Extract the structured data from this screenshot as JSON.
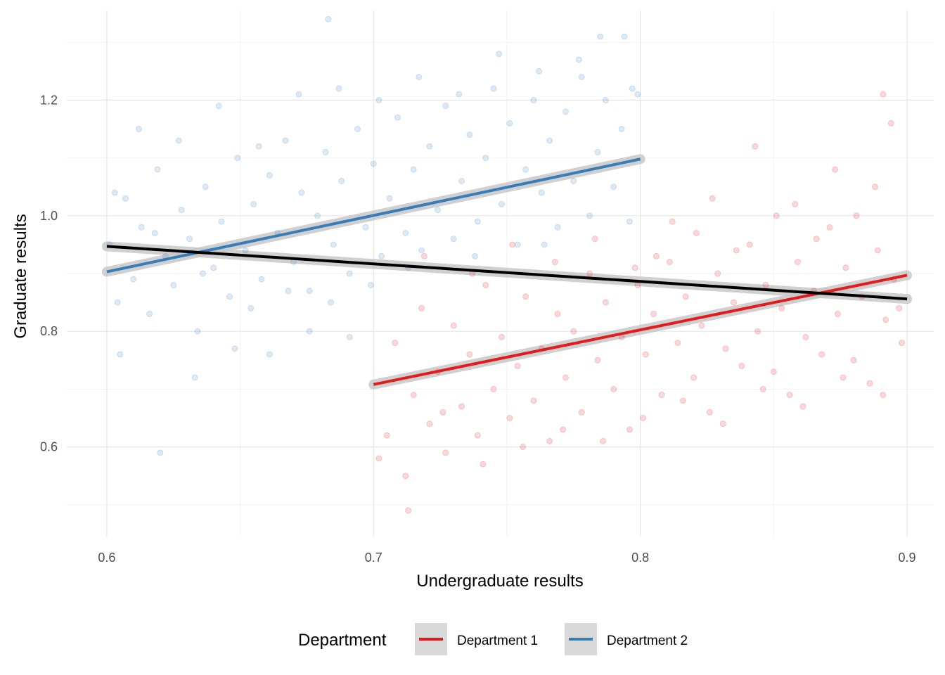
{
  "chart_data": {
    "type": "scatter",
    "title": "",
    "xlabel": "Undergraduate results",
    "ylabel": "Graduate results",
    "xlim": [
      0.585,
      0.91
    ],
    "ylim": [
      0.445,
      1.355
    ],
    "x_ticks": [
      0.6,
      0.7,
      0.8,
      0.9
    ],
    "x_tick_labels": [
      "0.6",
      "0.7",
      "0.8",
      "0.9"
    ],
    "y_ticks": [
      0.6,
      0.8,
      1.0,
      1.2
    ],
    "y_tick_labels": [
      "0.6",
      "0.8",
      "1.0",
      "1.2"
    ],
    "grid": true,
    "legend": {
      "title": "Department",
      "position": "bottom",
      "entries": [
        {
          "label": "Department 1",
          "color": "#e41a1c"
        },
        {
          "label": "Department 2",
          "color": "#377eb8"
        }
      ]
    },
    "series": [
      {
        "name": "Department 1",
        "color": "#e41a1c",
        "x_range": [
          0.7,
          0.9
        ],
        "trend": {
          "x": [
            0.7,
            0.9
          ],
          "y": [
            0.708,
            0.897
          ]
        },
        "points": [
          [
            0.705,
            0.62
          ],
          [
            0.708,
            0.78
          ],
          [
            0.712,
            0.55
          ],
          [
            0.715,
            0.69
          ],
          [
            0.718,
            0.84
          ],
          [
            0.721,
            0.64
          ],
          [
            0.724,
            0.73
          ],
          [
            0.727,
            0.59
          ],
          [
            0.73,
            0.81
          ],
          [
            0.733,
            0.67
          ],
          [
            0.736,
            0.76
          ],
          [
            0.739,
            0.62
          ],
          [
            0.742,
            0.88
          ],
          [
            0.745,
            0.7
          ],
          [
            0.748,
            0.79
          ],
          [
            0.751,
            0.65
          ],
          [
            0.754,
            0.74
          ],
          [
            0.757,
            0.86
          ],
          [
            0.76,
            0.68
          ],
          [
            0.763,
            0.77
          ],
          [
            0.766,
            0.61
          ],
          [
            0.769,
            0.83
          ],
          [
            0.772,
            0.72
          ],
          [
            0.775,
            0.8
          ],
          [
            0.778,
            0.66
          ],
          [
            0.781,
            0.9
          ],
          [
            0.784,
            0.75
          ],
          [
            0.787,
            0.85
          ],
          [
            0.79,
            0.7
          ],
          [
            0.793,
            0.79
          ],
          [
            0.796,
            0.63
          ],
          [
            0.799,
            0.88
          ],
          [
            0.802,
            0.76
          ],
          [
            0.805,
            0.83
          ],
          [
            0.808,
            0.69
          ],
          [
            0.811,
            0.92
          ],
          [
            0.814,
            0.78
          ],
          [
            0.817,
            0.86
          ],
          [
            0.82,
            0.72
          ],
          [
            0.823,
            0.81
          ],
          [
            0.826,
            0.66
          ],
          [
            0.829,
            0.9
          ],
          [
            0.832,
            0.77
          ],
          [
            0.835,
            0.85
          ],
          [
            0.838,
            0.74
          ],
          [
            0.841,
            0.95
          ],
          [
            0.844,
            0.8
          ],
          [
            0.847,
            0.88
          ],
          [
            0.85,
            0.73
          ],
          [
            0.853,
            0.84
          ],
          [
            0.856,
            0.69
          ],
          [
            0.859,
            0.92
          ],
          [
            0.862,
            0.79
          ],
          [
            0.865,
            0.87
          ],
          [
            0.868,
            0.76
          ],
          [
            0.871,
            0.98
          ],
          [
            0.874,
            0.83
          ],
          [
            0.877,
            0.91
          ],
          [
            0.88,
            0.75
          ],
          [
            0.883,
            0.86
          ],
          [
            0.886,
            0.71
          ],
          [
            0.889,
            0.94
          ],
          [
            0.892,
            0.82
          ],
          [
            0.895,
            0.89
          ],
          [
            0.898,
            0.78
          ],
          [
            0.702,
            0.58
          ],
          [
            0.713,
            0.49
          ],
          [
            0.726,
            0.66
          ],
          [
            0.741,
            0.57
          ],
          [
            0.756,
            0.6
          ],
          [
            0.771,
            0.63
          ],
          [
            0.786,
            0.61
          ],
          [
            0.801,
            0.65
          ],
          [
            0.816,
            0.68
          ],
          [
            0.831,
            0.64
          ],
          [
            0.846,
            0.7
          ],
          [
            0.861,
            0.67
          ],
          [
            0.876,
            0.72
          ],
          [
            0.891,
            0.69
          ],
          [
            0.897,
            0.84
          ],
          [
            0.719,
            0.93
          ],
          [
            0.737,
            0.9
          ],
          [
            0.752,
            0.95
          ],
          [
            0.768,
            0.92
          ],
          [
            0.783,
            0.96
          ],
          [
            0.798,
            0.91
          ],
          [
            0.812,
            0.99
          ],
          [
            0.827,
            1.03
          ],
          [
            0.843,
            1.12
          ],
          [
            0.858,
            1.02
          ],
          [
            0.873,
            1.08
          ],
          [
            0.888,
            1.05
          ],
          [
            0.891,
            1.21
          ],
          [
            0.894,
            1.16
          ],
          [
            0.881,
            1.0
          ],
          [
            0.866,
            0.96
          ],
          [
            0.851,
            1.0
          ],
          [
            0.836,
            0.94
          ],
          [
            0.821,
            0.97
          ],
          [
            0.806,
            0.93
          ]
        ]
      },
      {
        "name": "Department 2",
        "color": "#377eb8",
        "x_range": [
          0.6,
          0.8
        ],
        "trend": {
          "x": [
            0.6,
            0.8
          ],
          "y": [
            0.903,
            1.098
          ]
        },
        "points": [
          [
            0.601,
            0.95
          ],
          [
            0.604,
            0.85
          ],
          [
            0.607,
            1.03
          ],
          [
            0.61,
            0.89
          ],
          [
            0.613,
            0.98
          ],
          [
            0.616,
            0.83
          ],
          [
            0.619,
            1.08
          ],
          [
            0.622,
            0.93
          ],
          [
            0.625,
            0.88
          ],
          [
            0.628,
            1.01
          ],
          [
            0.631,
            0.96
          ],
          [
            0.634,
            0.8
          ],
          [
            0.637,
            1.05
          ],
          [
            0.64,
            0.91
          ],
          [
            0.643,
            0.99
          ],
          [
            0.646,
            0.86
          ],
          [
            0.649,
            1.1
          ],
          [
            0.652,
            0.94
          ],
          [
            0.655,
            1.02
          ],
          [
            0.658,
            0.89
          ],
          [
            0.661,
            1.07
          ],
          [
            0.664,
            0.97
          ],
          [
            0.667,
            1.13
          ],
          [
            0.67,
            0.92
          ],
          [
            0.673,
            1.04
          ],
          [
            0.676,
            0.87
          ],
          [
            0.679,
            1.0
          ],
          [
            0.682,
            1.11
          ],
          [
            0.685,
            0.95
          ],
          [
            0.688,
            1.06
          ],
          [
            0.691,
            0.9
          ],
          [
            0.694,
            1.15
          ],
          [
            0.697,
            0.98
          ],
          [
            0.7,
            1.09
          ],
          [
            0.703,
            0.93
          ],
          [
            0.706,
            1.03
          ],
          [
            0.709,
            1.17
          ],
          [
            0.712,
            0.97
          ],
          [
            0.715,
            1.08
          ],
          [
            0.718,
            0.94
          ],
          [
            0.721,
            1.12
          ],
          [
            0.724,
            1.01
          ],
          [
            0.727,
            1.19
          ],
          [
            0.73,
            0.96
          ],
          [
            0.733,
            1.06
          ],
          [
            0.736,
            1.14
          ],
          [
            0.739,
            0.99
          ],
          [
            0.742,
            1.1
          ],
          [
            0.745,
            1.22
          ],
          [
            0.748,
            1.02
          ],
          [
            0.751,
            1.16
          ],
          [
            0.754,
            0.95
          ],
          [
            0.757,
            1.08
          ],
          [
            0.76,
            1.2
          ],
          [
            0.763,
            1.04
          ],
          [
            0.766,
            1.13
          ],
          [
            0.769,
            0.98
          ],
          [
            0.772,
            1.18
          ],
          [
            0.775,
            1.06
          ],
          [
            0.778,
            1.24
          ],
          [
            0.781,
            1.0
          ],
          [
            0.784,
            1.11
          ],
          [
            0.787,
            1.2
          ],
          [
            0.79,
            1.05
          ],
          [
            0.793,
            1.15
          ],
          [
            0.796,
            0.99
          ],
          [
            0.799,
            1.21
          ],
          [
            0.605,
            0.76
          ],
          [
            0.62,
            0.59
          ],
          [
            0.633,
            0.72
          ],
          [
            0.648,
            0.77
          ],
          [
            0.661,
            0.76
          ],
          [
            0.676,
            0.8
          ],
          [
            0.691,
            0.79
          ],
          [
            0.612,
            1.15
          ],
          [
            0.627,
            1.13
          ],
          [
            0.642,
            1.19
          ],
          [
            0.657,
            1.12
          ],
          [
            0.672,
            1.21
          ],
          [
            0.687,
            1.22
          ],
          [
            0.683,
            1.34
          ],
          [
            0.702,
            1.2
          ],
          [
            0.717,
            1.24
          ],
          [
            0.732,
            1.21
          ],
          [
            0.747,
            1.28
          ],
          [
            0.762,
            1.25
          ],
          [
            0.777,
            1.27
          ],
          [
            0.785,
            1.31
          ],
          [
            0.794,
            1.31
          ],
          [
            0.797,
            1.22
          ],
          [
            0.603,
            1.04
          ],
          [
            0.618,
            0.97
          ],
          [
            0.636,
            0.9
          ],
          [
            0.654,
            0.84
          ],
          [
            0.668,
            0.87
          ],
          [
            0.684,
            0.85
          ],
          [
            0.699,
            0.88
          ],
          [
            0.713,
            0.91
          ],
          [
            0.738,
            0.93
          ],
          [
            0.764,
            0.95
          ]
        ]
      },
      {
        "name": "",
        "color": "#000000",
        "trend": {
          "x": [
            0.6,
            0.9
          ],
          "y": [
            0.947,
            0.856
          ]
        }
      }
    ]
  }
}
